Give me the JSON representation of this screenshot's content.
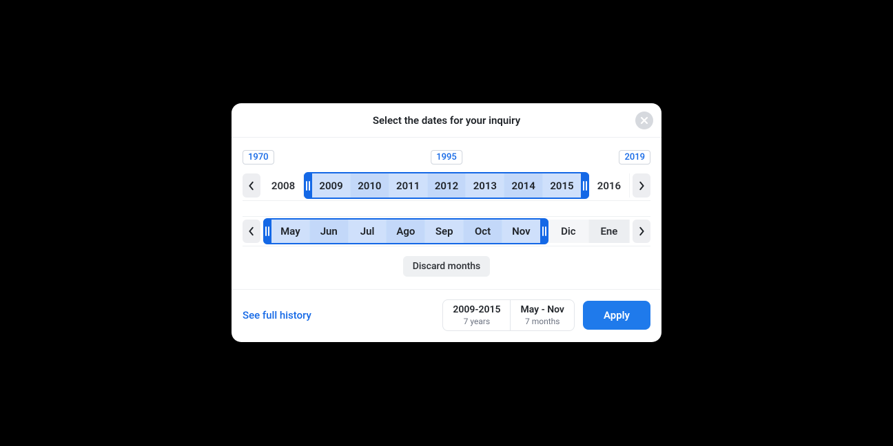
{
  "colors": {
    "accent": "#1468e6",
    "apply_bg": "#1f7aeb",
    "panel_bg": "#ffffff",
    "page_bg": "#000000",
    "muted_text": "#6b7280",
    "border": "#eef0f2",
    "chip_border": "#d0d5dd",
    "close_bg": "#d6d9de",
    "selection_fill": "#cfe0fb",
    "selection_fill_alt": "#c3d8f9"
  },
  "modal": {
    "title": "Select the dates for your inquiry"
  },
  "markers": {
    "left": "1970",
    "mid": "1995",
    "right": "2019"
  },
  "years": {
    "visible": [
      "2008",
      "2009",
      "2010",
      "2011",
      "2012",
      "2013",
      "2014",
      "2015",
      "2016"
    ],
    "selected_start_index": 1,
    "selected_end_index": 7,
    "cell_count": 9
  },
  "months": {
    "visible": [
      "May",
      "Jun",
      "Jul",
      "Ago",
      "Sep",
      "Oct",
      "Nov",
      "Dic",
      "Ene"
    ],
    "selected_start_index": 0,
    "selected_end_index": 6,
    "cell_count": 9
  },
  "actions": {
    "discard_months": "Discard months",
    "see_full_history": "See full history",
    "apply": "Apply"
  },
  "summary": {
    "years_range": "2009-2015",
    "years_count": "7 years",
    "months_range": "May - Nov",
    "months_count": "7 months"
  }
}
